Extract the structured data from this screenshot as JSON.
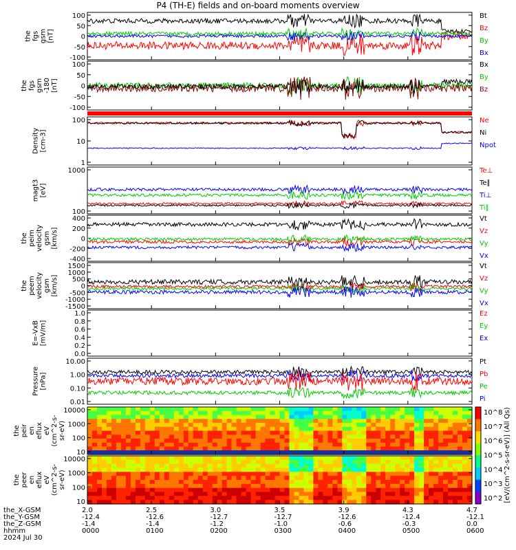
{
  "title": "P4 (TH-E) fields and on-board moments overview",
  "chart_data": {
    "type": "line",
    "title": "P4 (TH-E) fields and on-board moments overview",
    "x_time_labels": [
      "0000",
      "0100",
      "0200",
      "0300",
      "0400",
      "0500",
      "0600"
    ],
    "date": "2024 Jul 30",
    "footer_rows": [
      {
        "name": "the_X-GSM",
        "values": [
          "2.0",
          "2.5",
          "3.0",
          "3.5",
          "3.9",
          "4.3",
          "4.7"
        ]
      },
      {
        "name": "the_Y-GSM",
        "values": [
          "-12.4",
          "-12.6",
          "-12.7",
          "-12.7",
          "-12.6",
          "-12.4",
          "-12.1"
        ]
      },
      {
        "name": "the_Z-GSM",
        "values": [
          "-1.4",
          "-1.4",
          "-1.2",
          "-1.0",
          "-0.6",
          "-0.3",
          "0.0"
        ]
      },
      {
        "name": "hhmm",
        "values": [
          "0000",
          "0100",
          "0200",
          "0300",
          "0400",
          "0500",
          "0600"
        ]
      }
    ],
    "panels": [
      {
        "ylabel": [
          "the",
          "fgs",
          "gsm",
          "[nT]"
        ],
        "yticks": [
          "100",
          "50",
          "0",
          "-50",
          "-100"
        ],
        "ylim": [
          -100,
          100
        ],
        "legend": [
          {
            "name": "Bt",
            "color": "#000000"
          },
          {
            "name": "Bz",
            "color": "#ff0000"
          },
          {
            "name": "By",
            "color": "#00cc00"
          },
          {
            "name": "Bx",
            "color": "#0000ff"
          }
        ]
      },
      {
        "ylabel": [
          "the",
          "fgs",
          "gsm",
          "-180",
          "[nT]"
        ],
        "yticks": [
          "100",
          "50",
          "0",
          "-50",
          "-100"
        ],
        "ylim": [
          -120,
          100
        ],
        "legend": [
          {
            "name": "Bx",
            "color": "#000000"
          },
          {
            "name": "By",
            "color": "#00cc00"
          },
          {
            "name": "Bz",
            "color": "#8b0000"
          }
        ]
      },
      {
        "ylabel": [
          "Density",
          "[cm-3]"
        ],
        "yticks": [
          "100",
          "10",
          "1"
        ],
        "log": true,
        "legend": [
          {
            "name": "Ne",
            "color": "#ff0000"
          },
          {
            "name": "Ni",
            "color": "#000000"
          },
          {
            "name": "Npot",
            "color": "#0000ff"
          }
        ]
      },
      {
        "ylabel": [
          "magt3",
          "[eV]"
        ],
        "yticks": [
          "1000",
          "100"
        ],
        "log": true,
        "legend": [
          {
            "name": "Te⊥",
            "color": "#ff0000"
          },
          {
            "name": "Te∥",
            "color": "#000000"
          },
          {
            "name": "Ti⊥",
            "color": "#0000ff"
          },
          {
            "name": "Ti∥",
            "color": "#00cc00"
          }
        ]
      },
      {
        "ylabel": [
          "the",
          "peim",
          "velocity",
          "gsm",
          "[km/s]"
        ],
        "yticks": [
          "400",
          "200",
          "0",
          "-200",
          "-400"
        ],
        "ylim": [
          -400,
          500
        ],
        "legend": [
          {
            "name": "Vt",
            "color": "#000000"
          },
          {
            "name": "Vz",
            "color": "#ff0000"
          },
          {
            "name": "Vy",
            "color": "#00cc00"
          },
          {
            "name": "Vx",
            "color": "#0000ff"
          }
        ]
      },
      {
        "ylabel": [
          "the",
          "peem",
          "velocity",
          "gsm",
          "[km/s]"
        ],
        "yticks": [
          "1500",
          "1000",
          "500",
          "0",
          "-500",
          "-1000",
          "-1500"
        ],
        "ylim": [
          -1500,
          1500
        ],
        "legend": [
          {
            "name": "Vt",
            "color": "#000000"
          },
          {
            "name": "Vz",
            "color": "#ff0000"
          },
          {
            "name": "Vy",
            "color": "#00cc00"
          },
          {
            "name": "Vx",
            "color": "#0000ff"
          }
        ]
      },
      {
        "ylabel": [
          "E=-VxB",
          "[mV/m]"
        ],
        "yticks": [
          "1.0",
          "0.8",
          "0.6",
          "0.4",
          "0.2",
          "0.0"
        ],
        "ylim": [
          0,
          1
        ],
        "legend": [
          {
            "name": "Ez",
            "color": "#ff0000"
          },
          {
            "name": "Ey",
            "color": "#00cc00"
          },
          {
            "name": "Ex",
            "color": "#0000ff"
          }
        ]
      },
      {
        "ylabel": [
          "Pressure",
          "[nPa]"
        ],
        "yticks": [
          "10.00",
          "1.00",
          "0.10",
          "0.01"
        ],
        "log": true,
        "legend": [
          {
            "name": "Pt",
            "color": "#000000"
          },
          {
            "name": "Pb",
            "color": "#ff0000"
          },
          {
            "name": "Pe",
            "color": "#00cc00"
          },
          {
            "name": "Pi",
            "color": "#0000ff"
          }
        ]
      },
      {
        "ylabel": [
          "the",
          "peir",
          "en",
          "eflux",
          "eV",
          "(cm^2-s-",
          "sr-eV)"
        ],
        "yticks": [
          "10000",
          "1000",
          "100",
          "10"
        ],
        "type": "heatmap"
      },
      {
        "ylabel": [
          "the",
          "peer",
          "en",
          "eflux",
          "eV",
          "(cm^2-s-",
          "sr-eV)"
        ],
        "yticks": [
          "10000",
          "1000",
          "100",
          "10"
        ],
        "type": "heatmap"
      }
    ],
    "colorbar": {
      "label": "[eV/(cm^2-s-sr-eV)] (All Qs)",
      "ticks": [
        "10^8",
        "10^7",
        "10^6",
        "10^5",
        "10^4",
        "10^3",
        "10^2"
      ]
    }
  }
}
